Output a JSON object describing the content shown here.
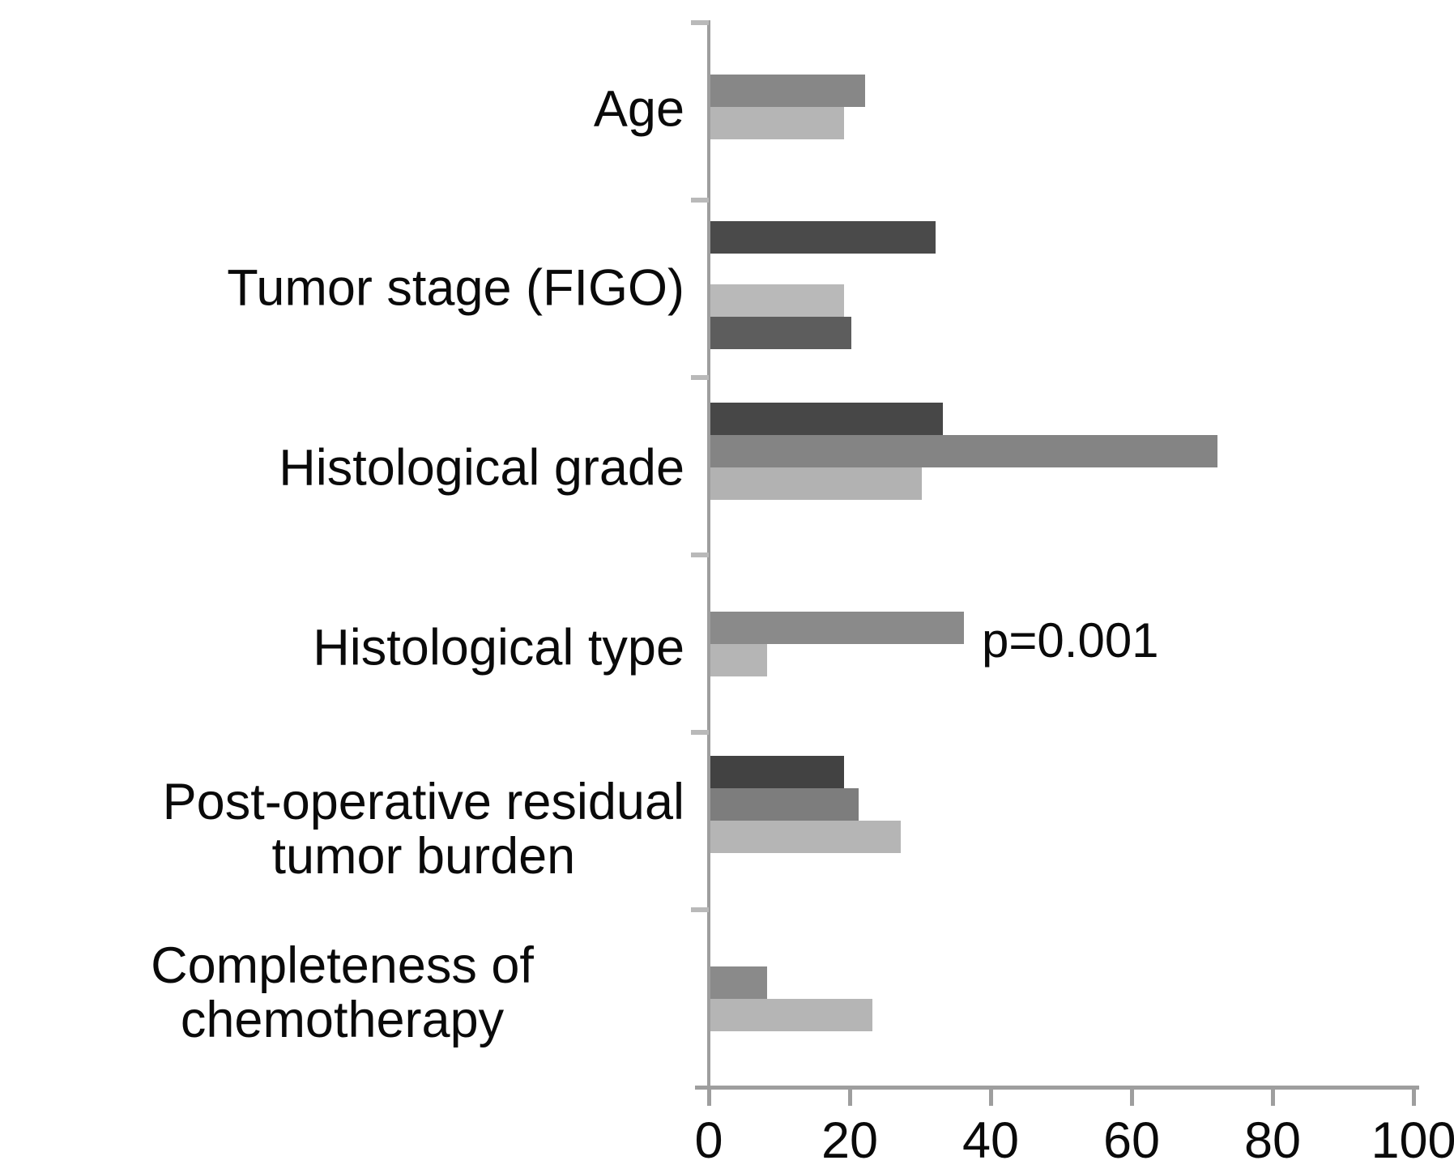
{
  "chart_data": {
    "type": "bar",
    "orientation": "horizontal",
    "title": "",
    "xlabel": "",
    "ylabel": "",
    "xlim": [
      0,
      100
    ],
    "x_ticks": [
      0,
      20,
      40,
      60,
      80,
      100
    ],
    "grid": false,
    "legend": "none",
    "bar_colors": {
      "dark": "#474747",
      "medium_dark": "#5d5d5d",
      "medium": "#878787",
      "light": "#b5b5b5"
    },
    "annotation": {
      "text": "p=0.001",
      "category": "Histological type"
    },
    "categories": [
      {
        "label": "Age",
        "label_lines": [
          "Age"
        ],
        "bars": [
          {
            "value": 22,
            "color": "#878787"
          },
          {
            "value": 19,
            "color": "#b5b5b5"
          }
        ]
      },
      {
        "label": "Tumor stage (FIGO)",
        "label_lines": [
          "Tumor stage (FIGO)"
        ],
        "bars": [
          {
            "value": 32,
            "color": "#4a4a4a"
          },
          {
            "value": 19,
            "color": "#b9b9b9",
            "gap_before": true
          },
          {
            "value": 20,
            "color": "#5d5d5d"
          }
        ]
      },
      {
        "label": "Histological grade",
        "label_lines": [
          "Histological grade"
        ],
        "bars": [
          {
            "value": 33,
            "color": "#474747"
          },
          {
            "value": 72,
            "color": "#848484"
          },
          {
            "value": 30,
            "color": "#b2b2b2"
          }
        ]
      },
      {
        "label": "Histological type",
        "label_lines": [
          "Histological type"
        ],
        "bars": [
          {
            "value": 36,
            "color": "#8a8a8a"
          },
          {
            "value": 8,
            "color": "#b5b5b5"
          }
        ]
      },
      {
        "label": "Post-operative residual tumor burden",
        "label_lines": [
          "Post-operative residual",
          "tumor burden"
        ],
        "bars": [
          {
            "value": 19,
            "color": "#424242"
          },
          {
            "value": 21,
            "color": "#7d7d7d"
          },
          {
            "value": 27,
            "color": "#b5b5b5"
          }
        ]
      },
      {
        "label": "Completeness of chemotherapy",
        "label_lines": [
          "Completeness of chemotherapy"
        ],
        "bars": [
          {
            "value": 8,
            "color": "#8a8a8a"
          },
          {
            "value": 23,
            "color": "#b5b5b5"
          }
        ]
      }
    ]
  }
}
